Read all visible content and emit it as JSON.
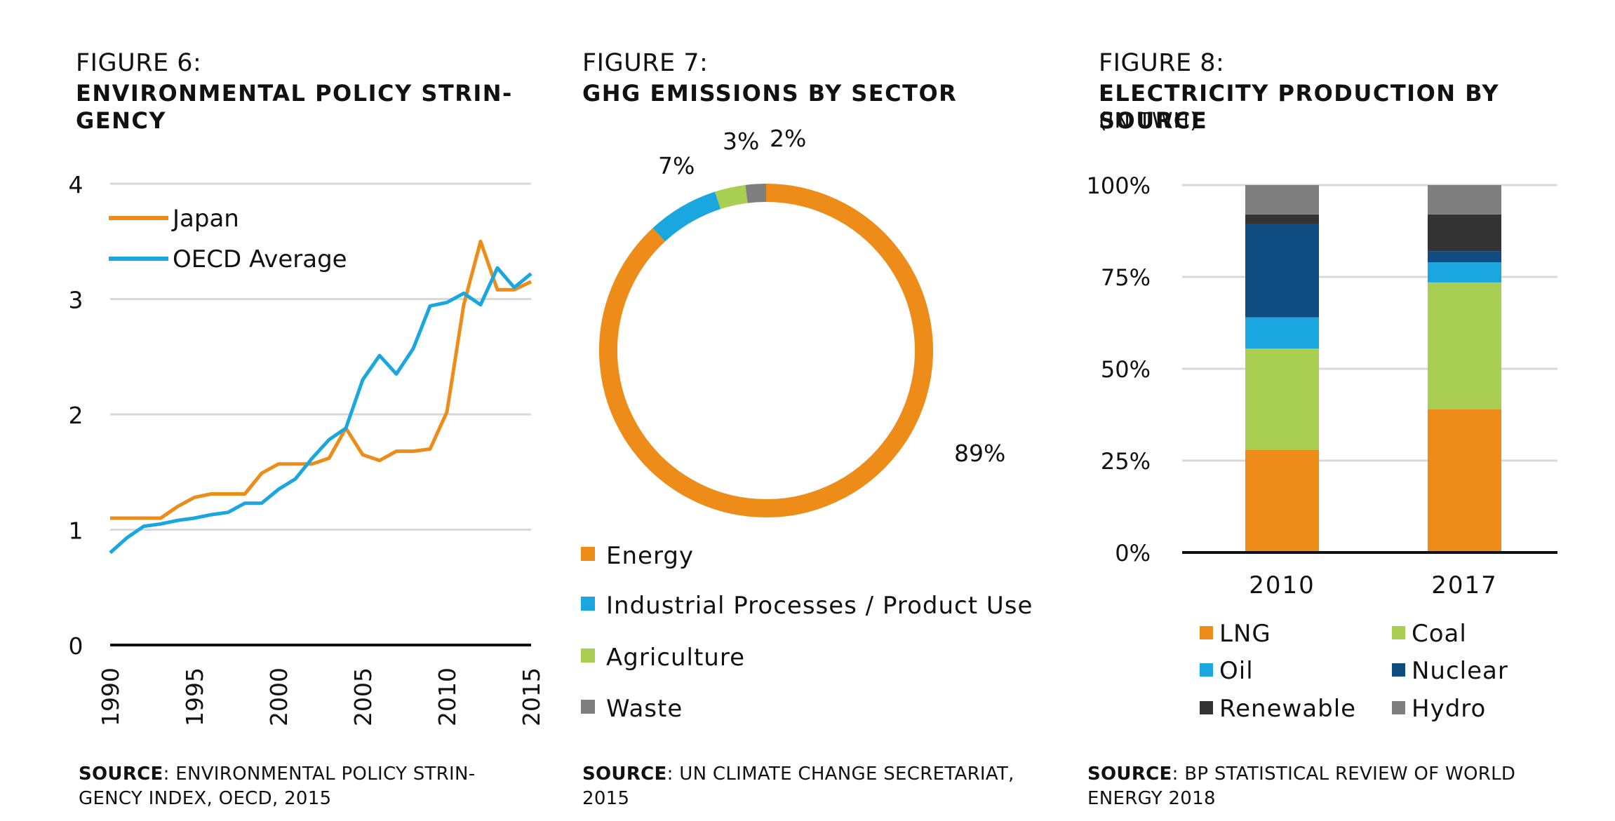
{
  "figure6": {
    "number": "FIGURE 6:",
    "title_line1": "ENVIRONMENTAL POLICY STRIN-",
    "title_line2": "GENCY",
    "source_label": "SOURCE",
    "source_line1": ": ENVIRONMENTAL POLICY STRIN-",
    "source_line2": "GENCY INDEX, OECD, 2015",
    "colors": {
      "Japan": "#EE8C1A",
      "OECD Average": "#1AA6DE"
    },
    "chart_data": {
      "type": "line",
      "title": "ENVIRONMENTAL POLICY STRINGENCY",
      "xlabel": "",
      "ylabel": "",
      "xlim": [
        1990,
        2015
      ],
      "ylim": [
        0,
        4
      ],
      "yticks": [
        "0",
        "1",
        "2",
        "3",
        "4"
      ],
      "xticks": [
        "1990",
        "1995",
        "2000",
        "2005",
        "2010",
        "2015"
      ],
      "grid": true,
      "legend": "top-left",
      "x": [
        1990,
        1991,
        1992,
        1993,
        1994,
        1995,
        1996,
        1997,
        1998,
        1999,
        2000,
        2001,
        2002,
        2003,
        2004,
        2005,
        2006,
        2007,
        2008,
        2009,
        2010,
        2011,
        2012,
        2013,
        2014,
        2015
      ],
      "series": [
        {
          "name": "Japan",
          "values": [
            1.1,
            1.1,
            1.1,
            1.1,
            1.2,
            1.28,
            1.31,
            1.31,
            1.31,
            1.49,
            1.57,
            1.57,
            1.57,
            1.62,
            1.88,
            1.65,
            1.6,
            1.68,
            1.68,
            1.7,
            2.02,
            2.95,
            3.5,
            3.08,
            3.08,
            3.15
          ]
        },
        {
          "name": "OECD Average",
          "values": [
            0.8,
            0.93,
            1.03,
            1.05,
            1.08,
            1.1,
            1.13,
            1.15,
            1.23,
            1.23,
            1.35,
            1.44,
            1.62,
            1.78,
            1.88,
            2.3,
            2.51,
            2.35,
            2.57,
            2.94,
            2.97,
            3.05,
            2.95,
            3.27,
            3.1,
            3.22
          ]
        }
      ]
    }
  },
  "figure7": {
    "number": "FIGURE 7:",
    "title": "GHG EMISSIONS BY SECTOR",
    "source_label": "SOURCE",
    "source_line1": ": UN CLIMATE CHANGE SECRETARIAT,",
    "source_line2": "2015",
    "chart_data": {
      "type": "pie",
      "title": "GHG EMISSIONS BY SECTOR",
      "donut": true,
      "legend": "bottom",
      "categories": [
        "Energy",
        "Industrial Processes / Product Use",
        "Agriculture",
        "Waste"
      ],
      "values": [
        89,
        7,
        3,
        2
      ],
      "data_labels": [
        "89%",
        "7%",
        "3%",
        "2%"
      ],
      "colors": [
        "#EE8C1A",
        "#1AA6DE",
        "#A9CF52",
        "#7F7F7F"
      ]
    }
  },
  "figure8": {
    "number": "FIGURE 8:",
    "title": "ELECTRICITY PRODUCTION BY SOURCE",
    "subtitle": "(IN TWH)",
    "source_label": "SOURCE",
    "source_line1": ": BP STATISTICAL REVIEW OF WORLD",
    "source_line2": "ENERGY 2018",
    "chart_data": {
      "type": "bar",
      "stacked": true,
      "percent": true,
      "title": "ELECTRICITY PRODUCTION BY SOURCE",
      "categories": [
        "2010",
        "2017"
      ],
      "ylim": [
        0,
        100
      ],
      "yticks": [
        "0%",
        "25%",
        "50%",
        "75%",
        "100%"
      ],
      "grid": true,
      "legend": "bottom",
      "series": [
        {
          "name": "LNG",
          "color": "#EE8C1A",
          "values": [
            28,
            39
          ]
        },
        {
          "name": "Coal",
          "color": "#A9CF52",
          "values": [
            27.5,
            34.5
          ]
        },
        {
          "name": "Oil",
          "color": "#1AA6DE",
          "values": [
            8.5,
            5.5
          ]
        },
        {
          "name": "Nuclear",
          "color": "#0E4C81",
          "values": [
            25.5,
            3
          ]
        },
        {
          "name": "Renewable",
          "color": "#333333",
          "values": [
            2.5,
            10
          ]
        },
        {
          "name": "Hydro",
          "color": "#7F7F7F",
          "values": [
            8,
            8
          ]
        }
      ]
    }
  }
}
